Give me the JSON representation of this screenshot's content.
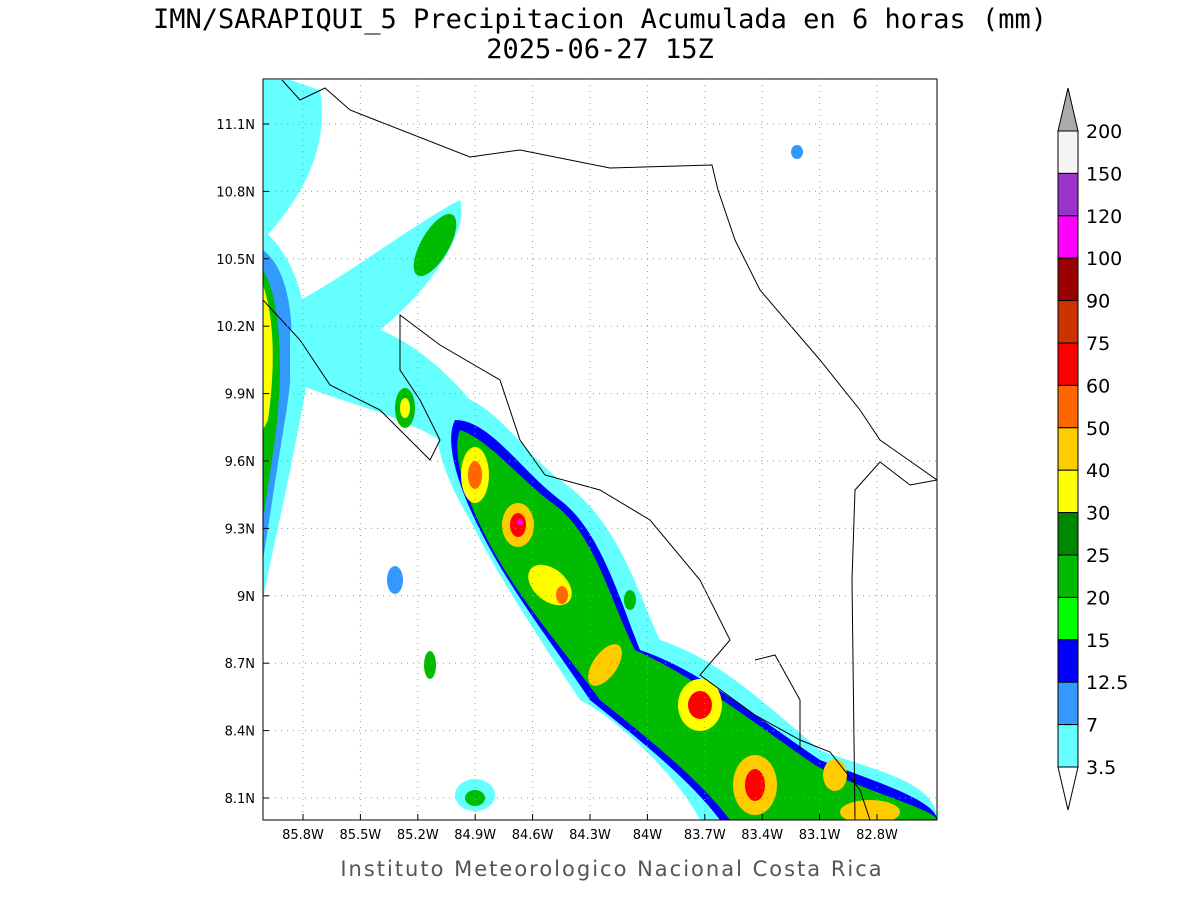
{
  "header": {
    "title": "IMN/SARAPIQUI_5 Precipitacion Acumulada en 6 horas (mm)",
    "subtitle": "2025-06-27 15Z"
  },
  "map": {
    "lon_labels": [
      "85.8W",
      "85.5W",
      "85.2W",
      "84.9W",
      "84.6W",
      "84.3W",
      "84W",
      "83.7W",
      "83.4W",
      "83.1W",
      "82.8W"
    ],
    "lat_labels": [
      "11.1N",
      "10.8N",
      "10.5N",
      "10.2N",
      "9.9N",
      "9.6N",
      "9.3N",
      "9N",
      "8.7N",
      "8.4N",
      "8.1N"
    ]
  },
  "colorbar": {
    "labels": [
      "200",
      "150",
      "120",
      "100",
      "90",
      "75",
      "60",
      "50",
      "40",
      "30",
      "25",
      "20",
      "15",
      "12.5",
      "7",
      "3.5"
    ],
    "colors": [
      "#f5f5f5",
      "#9933cc",
      "#ff00ff",
      "#990000",
      "#cc3300",
      "#ff0000",
      "#ff6600",
      "#ffcc00",
      "#ffff00",
      "#008800",
      "#00bb00",
      "#00ff00",
      "#0000ff",
      "#3399ff",
      "#66ffff"
    ],
    "over_color": "#aaaaaa",
    "under_color": "#ffffff"
  },
  "footer": "Instituto Meteorologico Nacional Costa Rica"
}
